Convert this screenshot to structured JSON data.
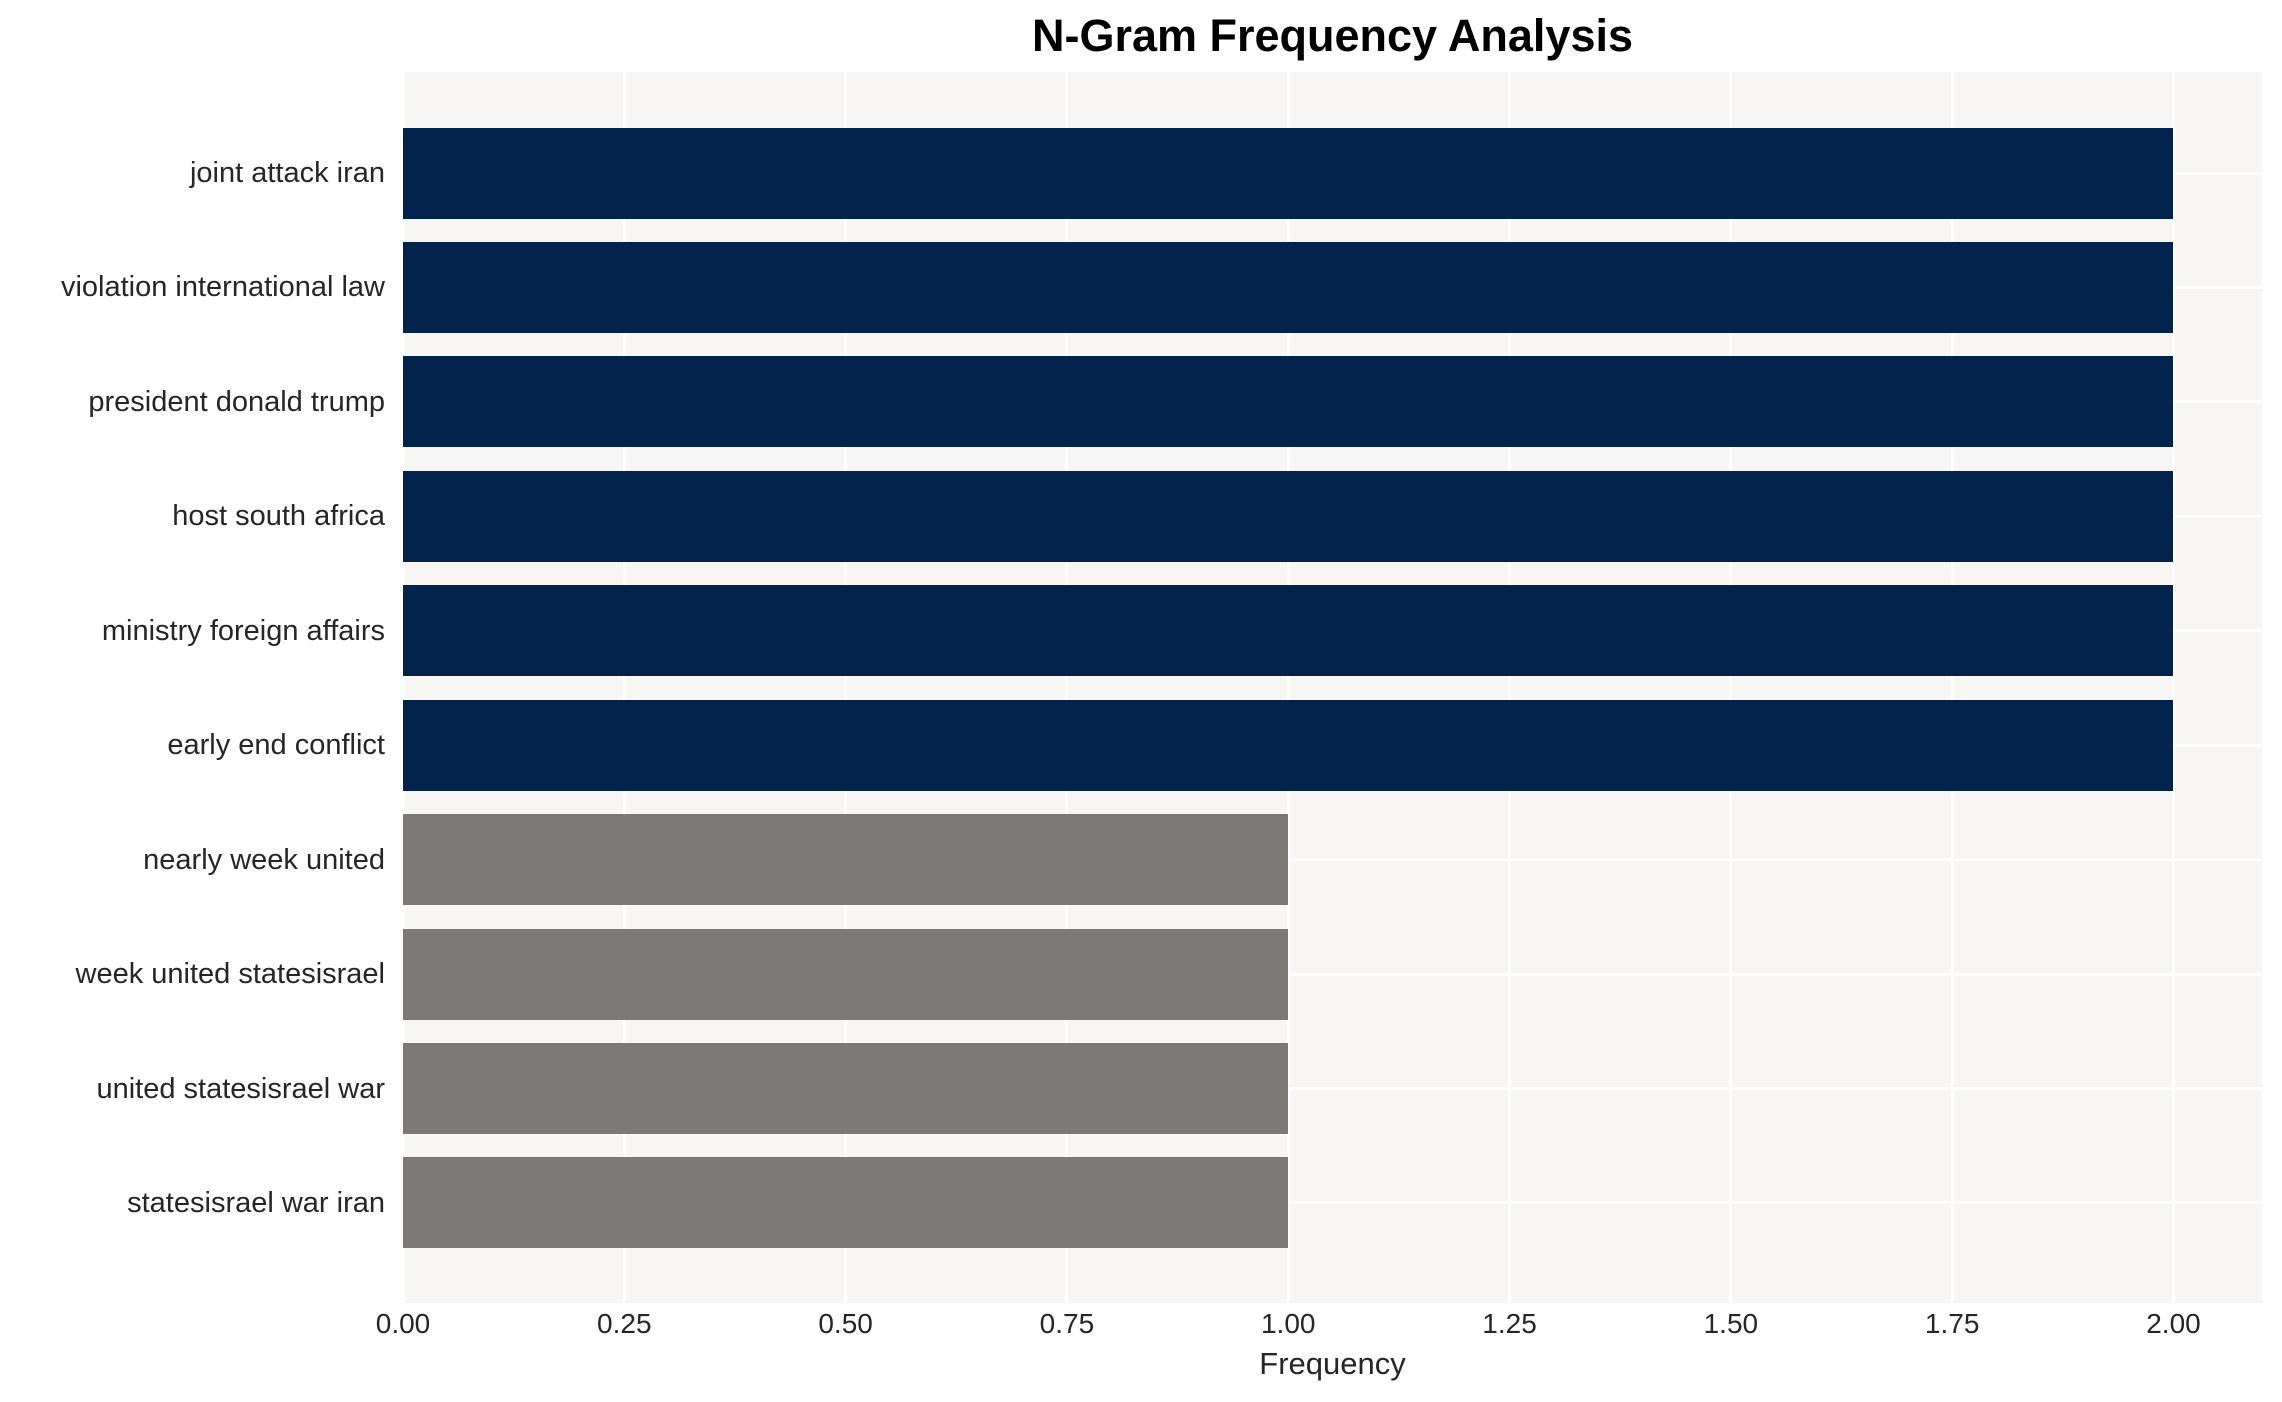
{
  "title": "N-Gram Frequency Analysis",
  "chart_data": {
    "type": "bar",
    "orientation": "horizontal",
    "title": "N-Gram Frequency Analysis",
    "xlabel": "Frequency",
    "ylabel": "",
    "categories": [
      "joint attack iran",
      "violation international law",
      "president donald trump",
      "host south africa",
      "ministry foreign affairs",
      "early end conflict",
      "nearly week united",
      "week united statesisrael",
      "united statesisrael war",
      "statesisrael war iran"
    ],
    "values": [
      2,
      2,
      2,
      2,
      2,
      2,
      1,
      1,
      1,
      1
    ],
    "bar_colors": [
      "#02234c",
      "#02234c",
      "#02234c",
      "#02234c",
      "#02234c",
      "#02234c",
      "#7b7a76",
      "#7b7a76",
      "#7b7a76",
      "#7b7a76"
    ],
    "xlim": [
      0,
      2.1
    ],
    "xticks": [
      0.0,
      0.25,
      0.5,
      0.75,
      1.0,
      1.25,
      1.5,
      1.75,
      2.0
    ],
    "xtick_labels": [
      "0.00",
      "0.25",
      "0.50",
      "0.75",
      "1.00",
      "1.25",
      "1.50",
      "1.75",
      "2.00"
    ],
    "grid": true,
    "grid_color": "#ffffff",
    "legend": false
  },
  "colors": {
    "page_background": "#ffffff",
    "plot_background": "#f7f6f5",
    "grid": "#ffffff",
    "bar_high": "#02234c",
    "bar_low": "#7b7a76",
    "tick_text": "#262626",
    "title_text": "#000000"
  }
}
